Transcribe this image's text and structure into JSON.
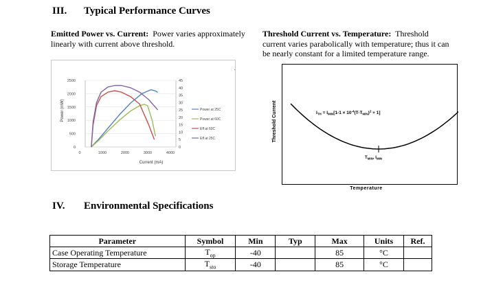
{
  "section3": {
    "number": "III.",
    "title": "Typical Performance Curves"
  },
  "left_caption": {
    "bold": "Emitted Power vs. Current:",
    "line1": "Power varies approximately",
    "line2": "linearly with current above threshold."
  },
  "right_caption": {
    "bold": "Threshold Current vs. Temperature:",
    "line1": "Threshold",
    "line2": "current varies parabolically with temperature; thus it can",
    "line3": "be nearly constant for a limited temperature range."
  },
  "chart_data": [
    {
      "type": "line",
      "xlabel": "Current (mA)",
      "ylabel": "Power (mW)",
      "x_ticks": [
        "0",
        "1000",
        "2000",
        "3000",
        "4000"
      ],
      "y_left_ticks": [
        "0",
        "500",
        "1000",
        "1500",
        "2000",
        "2500"
      ],
      "y_right_ticks": [
        "0",
        "5",
        "10",
        "15",
        "20",
        "25",
        "30",
        "35",
        "40",
        "45"
      ],
      "xlim": [
        0,
        4000
      ],
      "ylim_left": [
        0,
        2500
      ],
      "ylim_right": [
        0,
        45
      ],
      "legend_position": "right",
      "colors": [
        "#4f81bd",
        "#9bbb59",
        "#c0504d",
        "#8064a2"
      ],
      "series": [
        {
          "name": "Power at 25C",
          "axis": "left",
          "x": [
            270,
            600,
            1000,
            1500,
            2000,
            2500,
            2900,
            3100,
            3200
          ],
          "values": [
            0,
            300,
            700,
            1200,
            1650,
            2000,
            2150,
            2100,
            2050
          ]
        },
        {
          "name": "Power at 60C",
          "axis": "left",
          "x": [
            270,
            600,
            1000,
            1500,
            2000,
            2400,
            2600,
            2750,
            2950,
            3100
          ],
          "values": [
            0,
            250,
            600,
            1000,
            1350,
            1550,
            1600,
            1550,
            1000,
            400
          ]
        },
        {
          "name": "Eff at 60C",
          "axis": "right",
          "x": [
            270,
            350,
            500,
            700,
            1000,
            1300,
            1600,
            2000,
            2400,
            2800,
            3050
          ],
          "values": [
            0,
            15,
            28,
            34,
            37,
            38,
            37,
            34,
            29,
            15,
            5
          ]
        },
        {
          "name": "Eff at 25C",
          "axis": "right",
          "x": [
            270,
            350,
            500,
            700,
            1000,
            1300,
            1600,
            2000,
            2400,
            2800,
            3200
          ],
          "values": [
            0,
            17,
            30,
            37,
            40.5,
            41.5,
            41.5,
            40,
            37,
            32,
            25
          ]
        }
      ]
    },
    {
      "type": "line",
      "xlabel": "Temperature",
      "ylabel": "Threshold Current",
      "equation_prefix": "I",
      "equation_prefix_sub": "TH",
      "equation_mid": " = I",
      "equation_mid_sub": "MIN",
      "equation_rest": "[1-1 × 10",
      "equation_exp": "-4",
      "equation_tail": "(T-T",
      "equation_tail_sub": "MIN",
      "equation_end": ")",
      "equation_end_exp": "2",
      "equation_final": " + 1]",
      "min_label": "T",
      "min_label_sub": "MIN",
      "min_label_sep": ", I",
      "min_label_sub2": "MIN",
      "x": [
        -1,
        -0.75,
        -0.5,
        -0.25,
        0,
        0.25,
        0.5,
        0.75,
        1
      ],
      "values": [
        1.0,
        0.5625,
        0.25,
        0.0625,
        0,
        0.0625,
        0.25,
        0.5625,
        1.0
      ],
      "axis_ticks": "none"
    }
  ],
  "section4": {
    "number": "IV.",
    "title": "Environmental Specifications"
  },
  "table": {
    "headers": [
      "Parameter",
      "Symbol",
      "Min",
      "Typ",
      "Max",
      "Units",
      "Ref."
    ],
    "rows": [
      {
        "parameter": "Case Operating Temperature",
        "symbol": "T",
        "symbol_sub": "op",
        "min": "-40",
        "typ": "",
        "max": "85",
        "units": "°C",
        "ref": ""
      },
      {
        "parameter": "Storage Temperature",
        "symbol": "T",
        "symbol_sub": "sto",
        "min": "-40",
        "typ": "",
        "max": "85",
        "units": "°C",
        "ref": ""
      }
    ]
  }
}
